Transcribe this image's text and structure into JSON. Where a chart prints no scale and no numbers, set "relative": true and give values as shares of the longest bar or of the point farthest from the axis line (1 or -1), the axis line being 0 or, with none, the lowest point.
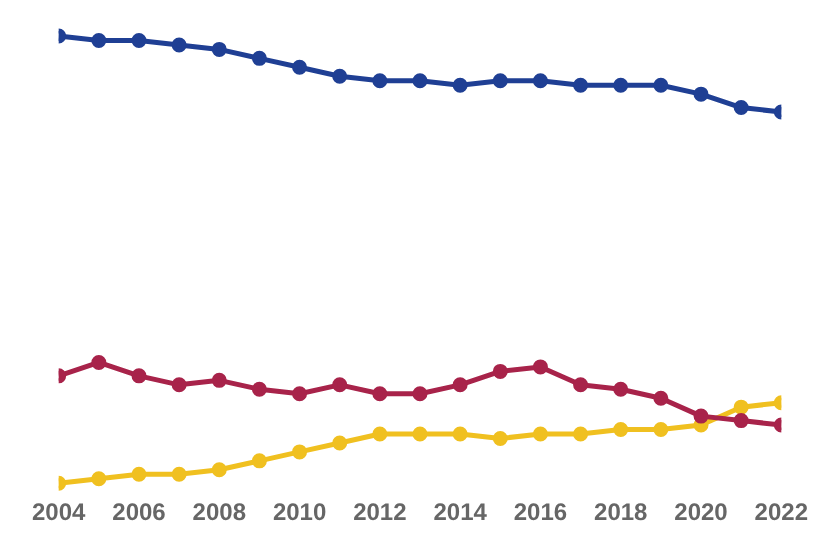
{
  "chart_data": {
    "type": "line",
    "relative": true,
    "x": [
      2004,
      2005,
      2006,
      2007,
      2008,
      2009,
      2010,
      2011,
      2012,
      2013,
      2014,
      2015,
      2016,
      2017,
      2018,
      2019,
      2020,
      2021,
      2022
    ],
    "xlim": [
      2004,
      2022
    ],
    "xticks": [
      2004,
      2006,
      2008,
      2010,
      2012,
      2014,
      2016,
      2018,
      2020,
      2022
    ],
    "marker": "circle",
    "line_style": "solid",
    "series": [
      {
        "color": "#1f3f94",
        "values": [
          1.0,
          0.99,
          0.99,
          0.98,
          0.97,
          0.95,
          0.93,
          0.91,
          0.9,
          0.9,
          0.89,
          0.9,
          0.9,
          0.89,
          0.89,
          0.89,
          0.87,
          0.84,
          0.83
        ]
      },
      {
        "color": "#a8234a",
        "values": [
          0.24,
          0.27,
          0.24,
          0.22,
          0.23,
          0.21,
          0.2,
          0.22,
          0.2,
          0.2,
          0.22,
          0.25,
          0.26,
          0.22,
          0.21,
          0.19,
          0.15,
          0.14,
          0.13
        ]
      },
      {
        "color": "#f0c020",
        "values": [
          0.0,
          0.01,
          0.02,
          0.02,
          0.03,
          0.05,
          0.07,
          0.09,
          0.11,
          0.11,
          0.11,
          0.1,
          0.11,
          0.11,
          0.12,
          0.12,
          0.13,
          0.17,
          0.18
        ]
      }
    ]
  }
}
